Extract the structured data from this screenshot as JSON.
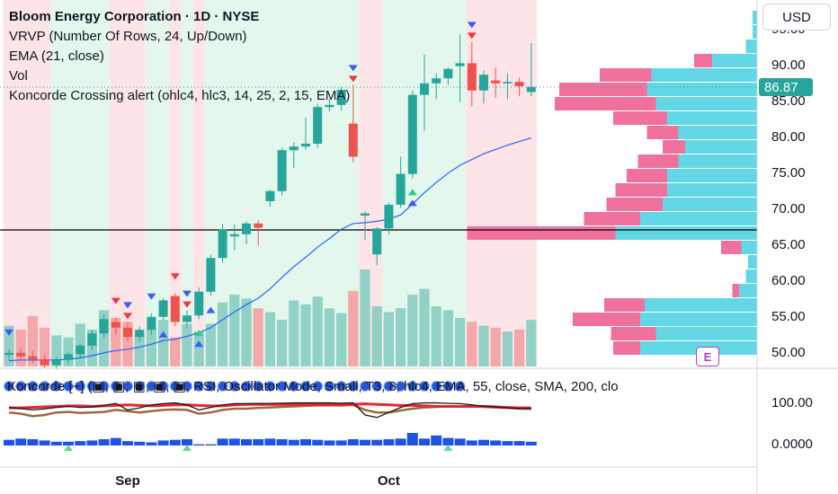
{
  "header": {
    "title": "Bloom Energy Corporation · 1D · NYSE",
    "indicators": [
      "VRVP (Number Of Rows, 24, Up/Down)",
      "EMA (21, close)",
      "Vol",
      "Koncorde Crossing alert (ohlc4, hlc3, 14, 25, 2, 15, EMA)"
    ]
  },
  "currency_button": "USD",
  "sub_pane_legend": "Koncorde [+] (▣, ▣, ▣, ▣, ▣, RSI, Oscillator Mode, Small, T3, 8, hlc4, EMA, 55, close, SMA, 200, clo",
  "earnings_badge": "E",
  "colors": {
    "up": "#26a69a",
    "down": "#ef5350",
    "ema": "#2962ff",
    "bg_green": "#e3f7ec",
    "bg_red": "#fde4e6",
    "vp_up": "#5ad6e6",
    "vp_down": "#f06292",
    "price_tag": "#26a69a"
  },
  "chart_data": {
    "type": "candlestick",
    "price_axis": {
      "ticks": [
        50,
        55,
        60,
        65,
        70,
        75,
        80,
        85,
        90,
        95
      ],
      "tick_labels": [
        "50.00",
        "55.00",
        "60.00",
        "65.00",
        "70.00",
        "75.00",
        "80.00",
        "85.00",
        "90.00",
        "95.00"
      ],
      "range": [
        48,
        99
      ]
    },
    "last_price": 86.87,
    "last_price_label": "86.87",
    "horizontal_line": 67.0,
    "time_axis": {
      "labels": [
        "Sep",
        "Oct"
      ],
      "label_bar_index": [
        10,
        32
      ]
    },
    "candles": [
      {
        "o": 49.6,
        "h": 50.4,
        "l": 48.9,
        "c": 49.9
      },
      {
        "o": 49.9,
        "h": 50.6,
        "l": 49.1,
        "c": 49.4
      },
      {
        "o": 49.4,
        "h": 50.2,
        "l": 48.5,
        "c": 49.0
      },
      {
        "o": 49.0,
        "h": 49.6,
        "l": 47.8,
        "c": 48.2
      },
      {
        "o": 48.2,
        "h": 49.3,
        "l": 47.6,
        "c": 48.9
      },
      {
        "o": 48.9,
        "h": 50.1,
        "l": 48.4,
        "c": 49.7
      },
      {
        "o": 49.7,
        "h": 51.2,
        "l": 49.2,
        "c": 50.9
      },
      {
        "o": 50.9,
        "h": 53.0,
        "l": 50.3,
        "c": 52.6
      },
      {
        "o": 52.6,
        "h": 55.2,
        "l": 52.0,
        "c": 54.6
      },
      {
        "o": 54.2,
        "h": 54.8,
        "l": 52.4,
        "c": 53.4
      },
      {
        "o": 53.4,
        "h": 54.2,
        "l": 51.6,
        "c": 52.1
      },
      {
        "o": 52.1,
        "h": 53.6,
        "l": 51.4,
        "c": 53.1
      },
      {
        "o": 53.1,
        "h": 55.4,
        "l": 52.4,
        "c": 54.9
      },
      {
        "o": 54.9,
        "h": 57.5,
        "l": 54.4,
        "c": 57.2
      },
      {
        "o": 57.8,
        "h": 58.2,
        "l": 53.6,
        "c": 54.2
      },
      {
        "o": 54.2,
        "h": 55.8,
        "l": 53.4,
        "c": 55.1
      },
      {
        "o": 55.1,
        "h": 59.0,
        "l": 54.6,
        "c": 58.4
      },
      {
        "o": 58.4,
        "h": 63.6,
        "l": 57.8,
        "c": 63.1
      },
      {
        "o": 63.1,
        "h": 67.8,
        "l": 62.4,
        "c": 67.1
      },
      {
        "o": 66.1,
        "h": 67.8,
        "l": 64.2,
        "c": 66.4
      },
      {
        "o": 66.4,
        "h": 68.2,
        "l": 65.0,
        "c": 67.9
      },
      {
        "o": 67.9,
        "h": 68.4,
        "l": 64.8,
        "c": 67.3
      },
      {
        "o": 71.0,
        "h": 72.6,
        "l": 70.2,
        "c": 72.4
      },
      {
        "o": 72.4,
        "h": 78.4,
        "l": 71.8,
        "c": 78.1
      },
      {
        "o": 78.1,
        "h": 79.2,
        "l": 75.6,
        "c": 78.6
      },
      {
        "o": 78.6,
        "h": 82.6,
        "l": 78.2,
        "c": 79.0
      },
      {
        "o": 79.0,
        "h": 84.6,
        "l": 78.4,
        "c": 84.1
      },
      {
        "o": 84.1,
        "h": 85.2,
        "l": 83.5,
        "c": 84.4
      },
      {
        "o": 84.4,
        "h": 86.9,
        "l": 83.6,
        "c": 86.5
      },
      {
        "o": 81.8,
        "h": 87.2,
        "l": 76.4,
        "c": 77.2
      },
      {
        "o": 69.0,
        "h": 69.6,
        "l": 65.6,
        "c": 69.3
      },
      {
        "o": 63.6,
        "h": 67.4,
        "l": 62.1,
        "c": 67.2
      },
      {
        "o": 67.2,
        "h": 70.8,
        "l": 66.4,
        "c": 70.5
      },
      {
        "o": 70.5,
        "h": 77.2,
        "l": 70.1,
        "c": 74.8
      },
      {
        "o": 74.8,
        "h": 86.4,
        "l": 74.2,
        "c": 85.8
      },
      {
        "o": 85.8,
        "h": 91.4,
        "l": 80.8,
        "c": 87.4
      },
      {
        "o": 87.4,
        "h": 88.8,
        "l": 85.2,
        "c": 88.1
      },
      {
        "o": 88.1,
        "h": 89.6,
        "l": 87.2,
        "c": 89.4
      },
      {
        "o": 89.8,
        "h": 94.2,
        "l": 84.8,
        "c": 90.2
      },
      {
        "o": 90.2,
        "h": 93.2,
        "l": 84.2,
        "c": 86.4
      },
      {
        "o": 86.4,
        "h": 89.2,
        "l": 84.6,
        "c": 88.6
      },
      {
        "o": 87.8,
        "h": 89.6,
        "l": 85.4,
        "c": 87.4
      },
      {
        "o": 87.4,
        "h": 88.8,
        "l": 85.2,
        "c": 87.6
      },
      {
        "o": 87.6,
        "h": 88.2,
        "l": 85.6,
        "c": 87.0
      },
      {
        "o": 86.2,
        "h": 93.0,
        "l": 85.6,
        "c": 86.9
      }
    ],
    "ema21": [
      48.8,
      48.9,
      48.9,
      48.9,
      48.9,
      49.0,
      49.2,
      49.5,
      49.9,
      50.2,
      50.4,
      50.7,
      51.1,
      51.6,
      51.8,
      52.2,
      52.7,
      53.4,
      54.5,
      55.6,
      56.6,
      57.5,
      58.8,
      60.4,
      61.9,
      63.2,
      64.6,
      65.8,
      67.1,
      67.9,
      68.0,
      68.2,
      68.5,
      69.1,
      70.6,
      72.2,
      73.6,
      74.9,
      76.0,
      76.8,
      77.6,
      78.2,
      78.8,
      79.3,
      79.8
    ],
    "volume_ratio": [
      0.42,
      0.38,
      0.52,
      0.4,
      0.32,
      0.3,
      0.44,
      0.38,
      0.58,
      0.5,
      0.46,
      0.34,
      0.4,
      0.48,
      0.3,
      0.44,
      0.36,
      0.44,
      0.66,
      0.74,
      0.7,
      0.6,
      0.56,
      0.48,
      0.68,
      0.64,
      0.72,
      0.6,
      0.55,
      0.78,
      1.0,
      0.62,
      0.56,
      0.6,
      0.74,
      0.8,
      0.62,
      0.58,
      0.5,
      0.46,
      0.42,
      0.4,
      0.36,
      0.38,
      0.48
    ],
    "volume_profile": [
      {
        "price": 50.5,
        "up": 0.52,
        "down": 0.12
      },
      {
        "price": 52.5,
        "up": 0.45,
        "down": 0.2
      },
      {
        "price": 54.5,
        "up": 0.52,
        "down": 0.3
      },
      {
        "price": 56.5,
        "up": 0.5,
        "down": 0.18
      },
      {
        "price": 58.5,
        "up": 0.08,
        "down": 0.03
      },
      {
        "price": 60.5,
        "up": 0.05,
        "down": 0.0
      },
      {
        "price": 62.5,
        "up": 0.04,
        "down": 0.0
      },
      {
        "price": 64.5,
        "up": 0.07,
        "down": 0.09
      },
      {
        "price": 66.5,
        "up": 0.63,
        "down": 0.66
      },
      {
        "price": 68.5,
        "up": 0.52,
        "down": 0.25
      },
      {
        "price": 70.5,
        "up": 0.42,
        "down": 0.25
      },
      {
        "price": 72.5,
        "up": 0.4,
        "down": 0.23
      },
      {
        "price": 74.5,
        "up": 0.4,
        "down": 0.18
      },
      {
        "price": 76.5,
        "up": 0.35,
        "down": 0.18
      },
      {
        "price": 78.5,
        "up": 0.32,
        "down": 0.1
      },
      {
        "price": 80.5,
        "up": 0.35,
        "down": 0.14
      },
      {
        "price": 82.5,
        "up": 0.4,
        "down": 0.24
      },
      {
        "price": 84.5,
        "up": 0.45,
        "down": 0.45
      },
      {
        "price": 86.5,
        "up": 0.49,
        "down": 0.39
      },
      {
        "price": 88.5,
        "up": 0.47,
        "down": 0.23
      },
      {
        "price": 90.5,
        "up": 0.2,
        "down": 0.08
      },
      {
        "price": 92.5,
        "up": 0.05,
        "down": 0.0
      },
      {
        "price": 94.5,
        "up": 0.02,
        "down": 0.0
      },
      {
        "price": 96.5,
        "up": 0.02,
        "down": 0.0
      }
    ],
    "background_regions": [
      {
        "from": 0,
        "to": 3,
        "color": "red"
      },
      {
        "from": 4,
        "to": 8,
        "color": "green"
      },
      {
        "from": 9,
        "to": 11,
        "color": "red"
      },
      {
        "from": 12,
        "to": 13,
        "color": "green"
      },
      {
        "from": 14,
        "to": 14,
        "color": "red"
      },
      {
        "from": 15,
        "to": 15,
        "color": "green"
      },
      {
        "from": 16,
        "to": 16,
        "color": "red"
      },
      {
        "from": 17,
        "to": 29,
        "color": "green"
      },
      {
        "from": 30,
        "to": 31,
        "color": "red"
      },
      {
        "from": 32,
        "to": 38,
        "color": "green"
      },
      {
        "from": 39,
        "to": 44,
        "color": "red"
      }
    ],
    "signals": [
      {
        "bar": 0,
        "kind": "down_blue"
      },
      {
        "bar": 10,
        "kind": "down_blue"
      },
      {
        "bar": 10,
        "kind": "down_red"
      },
      {
        "bar": 9,
        "kind": "down_red"
      },
      {
        "bar": 13,
        "kind": "up_blue"
      },
      {
        "bar": 12,
        "kind": "down_blue"
      },
      {
        "bar": 14,
        "kind": "down_red"
      },
      {
        "bar": 15,
        "kind": "down_blue"
      },
      {
        "bar": 15,
        "kind": "down_red"
      },
      {
        "bar": 16,
        "kind": "up_green"
      },
      {
        "bar": 16,
        "kind": "up_blue"
      },
      {
        "bar": 17,
        "kind": "up_blue"
      },
      {
        "bar": 29,
        "kind": "down_blue"
      },
      {
        "bar": 29,
        "kind": "down_red"
      },
      {
        "bar": 34,
        "kind": "up_green"
      },
      {
        "bar": 34,
        "kind": "up_blue"
      },
      {
        "bar": 39,
        "kind": "down_blue"
      },
      {
        "bar": 39,
        "kind": "down_red"
      }
    ],
    "oscillator": {
      "axis_ticks": [
        "100.00",
        "0.0000"
      ],
      "histogram": [
        0.45,
        0.55,
        0.5,
        0.4,
        0.3,
        0.3,
        0.35,
        0.4,
        0.5,
        0.6,
        0.35,
        0.3,
        0.25,
        0.4,
        0.45,
        0.5,
        0.1,
        0.1,
        0.55,
        0.55,
        0.5,
        0.5,
        0.55,
        0.5,
        0.45,
        0.5,
        0.45,
        0.4,
        0.4,
        0.5,
        0.45,
        0.45,
        0.5,
        0.55,
        1.0,
        0.55,
        0.8,
        0.6,
        0.55,
        0.4,
        0.45,
        0.4,
        0.35,
        0.35,
        0.3
      ],
      "red_line": [
        0.78,
        0.78,
        0.8,
        0.82,
        0.84,
        0.86,
        0.86,
        0.84,
        0.86,
        0.88,
        0.9,
        0.88,
        0.86,
        0.88,
        0.9,
        0.9,
        0.88,
        0.86,
        0.86,
        0.9,
        0.92,
        0.92,
        0.92,
        0.92,
        0.92,
        0.92,
        0.92,
        0.92,
        0.9,
        0.92,
        0.94,
        0.92,
        0.9,
        0.88,
        0.88,
        0.86,
        0.84,
        0.84,
        0.84,
        0.84,
        0.84,
        0.82,
        0.8,
        0.78,
        0.78
      ],
      "brown_line": [
        0.6,
        0.55,
        0.45,
        0.5,
        0.6,
        0.62,
        0.58,
        0.6,
        0.62,
        0.7,
        0.65,
        0.6,
        0.65,
        0.7,
        0.72,
        0.7,
        0.55,
        0.6,
        0.7,
        0.75,
        0.75,
        0.78,
        0.8,
        0.82,
        0.84,
        0.86,
        0.88,
        0.88,
        0.88,
        0.9,
        0.7,
        0.6,
        0.6,
        0.68,
        0.75,
        0.8,
        0.82,
        0.84,
        0.84,
        0.84,
        0.82,
        0.8,
        0.78,
        0.75,
        0.74
      ],
      "black_line": [
        0.8,
        0.75,
        0.7,
        0.74,
        0.8,
        0.84,
        0.8,
        0.82,
        0.88,
        0.96,
        0.7,
        0.78,
        0.9,
        0.95,
        0.98,
        0.9,
        0.7,
        0.8,
        0.9,
        0.95,
        0.95,
        0.96,
        0.96,
        0.97,
        0.98,
        0.98,
        0.98,
        0.98,
        0.97,
        0.98,
        0.5,
        0.4,
        0.6,
        0.8,
        0.95,
        0.98,
        0.98,
        0.96,
        0.95,
        0.9,
        0.85,
        0.82,
        0.78,
        0.76,
        0.75
      ]
    }
  }
}
